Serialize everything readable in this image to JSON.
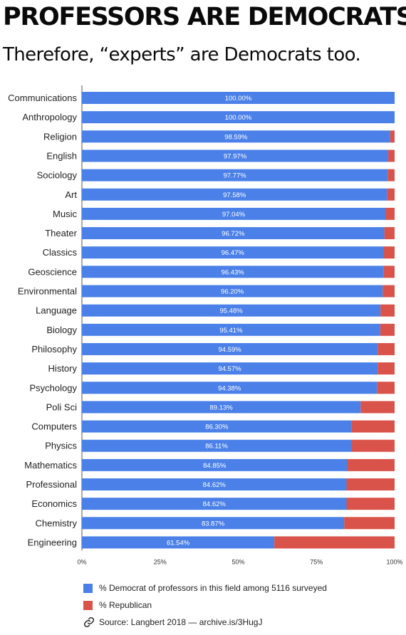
{
  "header": {
    "title": "PROFESSORS ARE DEMOCRATS",
    "subtitle": "Therefore, “experts” are Democrats too."
  },
  "colors": {
    "democrat": "#4a80e8",
    "republican": "#d9534a"
  },
  "chart_data": {
    "type": "bar",
    "orientation": "horizontal",
    "stacked": true,
    "categories": [
      "Communications",
      "Anthropology",
      "Religion",
      "English",
      "Sociology",
      "Art",
      "Music",
      "Theater",
      "Classics",
      "Geoscience",
      "Environmental",
      "Language",
      "Biology",
      "Philosophy",
      "History",
      "Psychology",
      "Poli Sci",
      "Computers",
      "Physics",
      "Mathematics",
      "Professional",
      "Economics",
      "Chemistry",
      "Engineering"
    ],
    "series": [
      {
        "name": "% Democrat of professors in this field among 5116 surveyed",
        "values": [
          100.0,
          100.0,
          98.59,
          97.97,
          97.77,
          97.58,
          97.04,
          96.72,
          96.47,
          96.43,
          96.2,
          95.48,
          95.41,
          94.59,
          94.57,
          94.38,
          89.13,
          86.3,
          86.11,
          84.85,
          84.62,
          84.62,
          83.87,
          61.54
        ],
        "labels": [
          "100.00%",
          "100.00%",
          "98.59%",
          "97.97%",
          "97.77%",
          "97.58%",
          "97.04%",
          "96.72%",
          "96.47%",
          "96.43%",
          "96.20%",
          "95.48%",
          "95.41%",
          "94.59%",
          "94.57%",
          "94.38%",
          "89.13%",
          "86.30%",
          "86.11%",
          "84.85%",
          "84.62%",
          "84.62%",
          "83.87%",
          "61.54%"
        ]
      },
      {
        "name": "% Republican",
        "values": [
          0.0,
          0.0,
          1.41,
          2.03,
          2.23,
          2.42,
          2.96,
          3.28,
          3.53,
          3.57,
          3.8,
          4.52,
          4.59,
          5.41,
          5.43,
          5.62,
          10.87,
          13.7,
          13.89,
          15.15,
          15.38,
          15.38,
          16.13,
          38.46
        ]
      }
    ],
    "x_ticks": [
      0,
      25,
      50,
      75,
      100
    ],
    "x_tick_labels": [
      "0%",
      "25%",
      "50%",
      "75%",
      "100%"
    ],
    "xlim": [
      0,
      100
    ],
    "grid": false,
    "legend_position": "bottom"
  },
  "source": {
    "text": "Source: Langbert 2018 — archive.is/3HugJ"
  }
}
